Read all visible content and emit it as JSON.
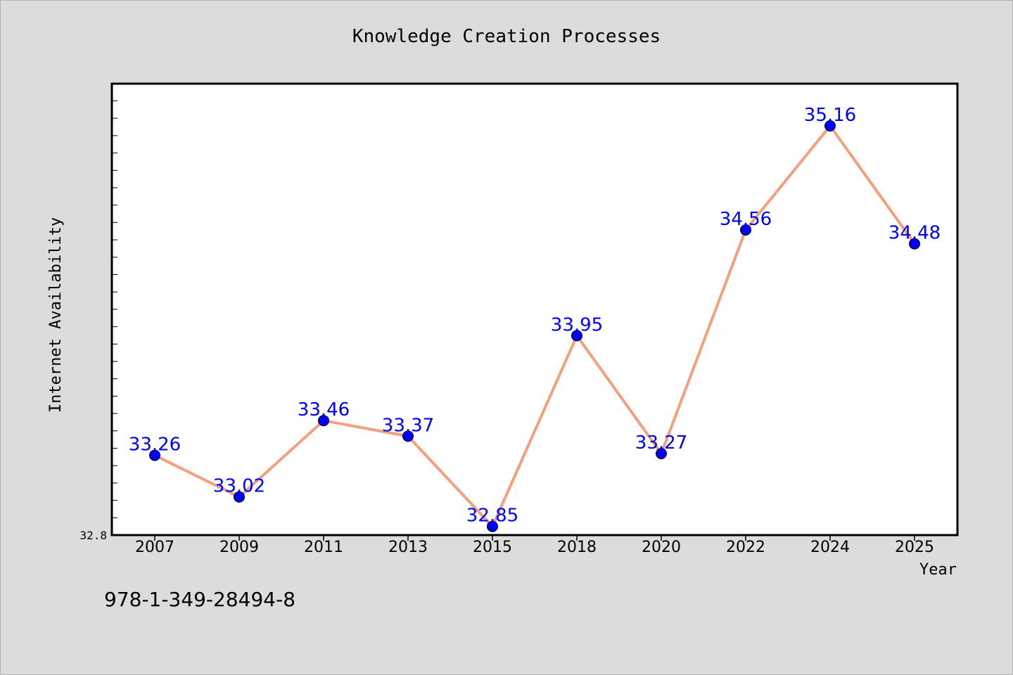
{
  "chart_data": {
    "type": "line",
    "title": "Knowledge Creation Processes",
    "xlabel": "Year",
    "ylabel": "Internet Availability",
    "categories": [
      "2007",
      "2009",
      "2011",
      "2013",
      "2015",
      "2018",
      "2020",
      "2022",
      "2024",
      "2025"
    ],
    "series": [
      {
        "values": [
          33.26,
          33.02,
          33.46,
          33.37,
          32.85,
          33.95,
          33.27,
          34.56,
          35.16,
          34.48
        ]
      }
    ],
    "y_tick_labels": [
      "32.8"
    ],
    "ylim": [
      32.8,
      35.4
    ],
    "grid": false,
    "line_color": "#f4a07e",
    "marker_color": "#0000ff",
    "label_color": "#0000ff"
  },
  "footnote": "978-1-349-28494-8"
}
